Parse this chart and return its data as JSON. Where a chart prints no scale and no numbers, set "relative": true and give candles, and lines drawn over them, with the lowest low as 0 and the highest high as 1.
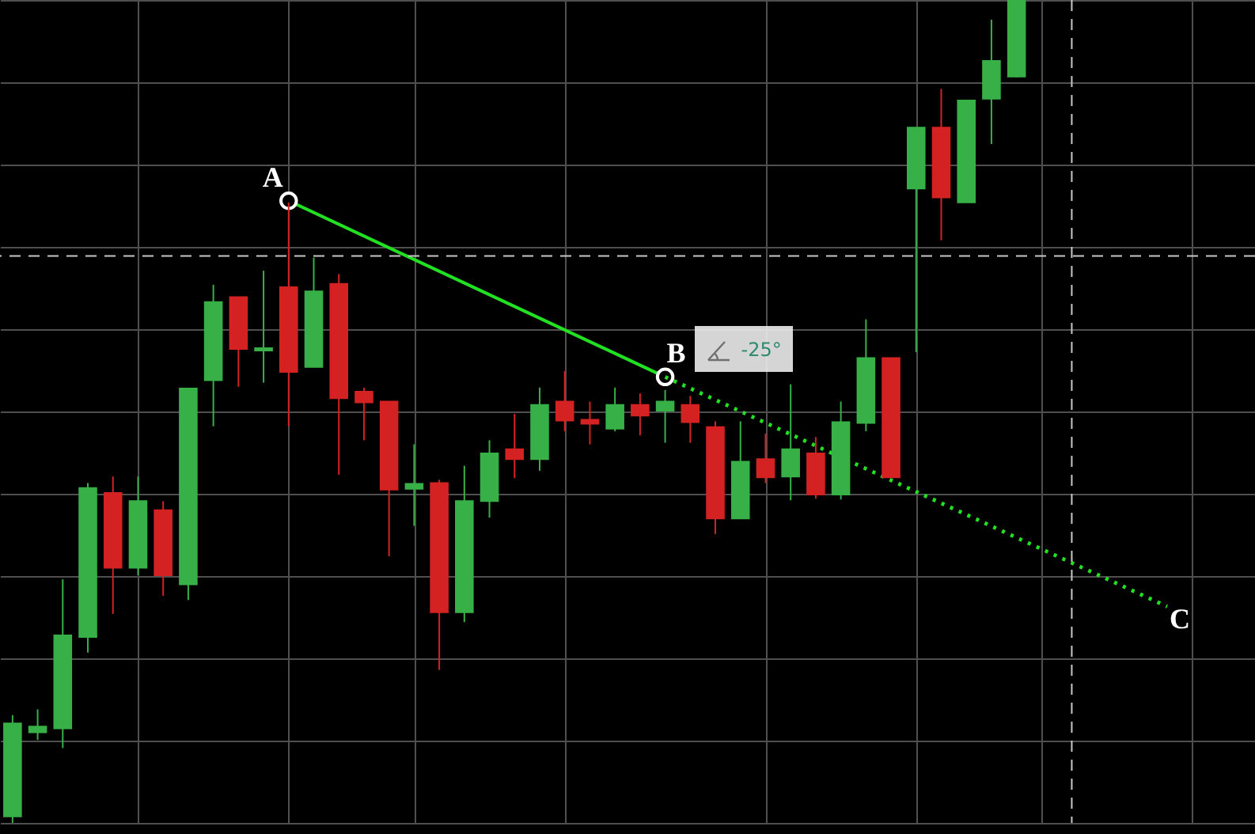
{
  "chart_data": {
    "type": "candlestick",
    "relative": true,
    "grid": true,
    "categories": [
      null,
      null,
      null,
      null,
      null,
      null,
      null,
      null,
      null,
      null,
      null,
      null,
      null,
      null,
      null,
      null,
      null,
      null,
      null,
      null,
      null,
      null,
      null,
      null,
      null,
      null,
      null,
      null,
      null,
      null,
      null,
      null,
      null,
      null,
      null,
      null,
      null,
      null,
      null,
      null,
      null,
      null,
      null,
      null,
      null,
      null,
      null,
      null,
      null,
      null
    ],
    "ohlc": [
      [
        0.008,
        0.131,
        0,
        0.121
      ],
      [
        0.11,
        0.138,
        0.101,
        0.117
      ],
      [
        0.115,
        0.296,
        0.091,
        0.228
      ],
      [
        0.226,
        0.413,
        0.207,
        0.407
      ],
      [
        0.401,
        0.421,
        0.254,
        0.31
      ],
      [
        0.31,
        0.421,
        0.301,
        0.391
      ],
      [
        0.38,
        0.391,
        0.276,
        0.301
      ],
      [
        0.29,
        0.528,
        0.271,
        0.528
      ],
      [
        0.538,
        0.654,
        0.482,
        0.633
      ],
      [
        0.639,
        0.639,
        0.53,
        0.576
      ],
      [
        0.574,
        0.671,
        0.535,
        0.577
      ],
      [
        0.651,
        0.754,
        0.482,
        0.548
      ],
      [
        0.554,
        0.687,
        0.554,
        0.646
      ],
      [
        0.655,
        0.667,
        0.423,
        0.516
      ],
      [
        0.524,
        0.529,
        0.465,
        0.511
      ],
      [
        0.512,
        0.512,
        0.324,
        0.405
      ],
      [
        0.406,
        0.46,
        0.361,
        0.412
      ],
      [
        0.413,
        0.417,
        0.186,
        0.256
      ],
      [
        0.256,
        0.434,
        0.244,
        0.391
      ],
      [
        0.391,
        0.465,
        0.371,
        0.449
      ],
      [
        0.454,
        0.497,
        0.419,
        0.442
      ],
      [
        0.442,
        0.529,
        0.428,
        0.508
      ],
      [
        0.512,
        0.549,
        0.476,
        0.489
      ],
      [
        0.49,
        0.512,
        0.46,
        0.485
      ],
      [
        0.479,
        0.529,
        0.476,
        0.508
      ],
      [
        0.508,
        0.522,
        0.471,
        0.495
      ],
      [
        0.501,
        0.526,
        0.462,
        0.512
      ],
      [
        0.508,
        0.519,
        0.462,
        0.487
      ],
      [
        0.481,
        0.488,
        0.351,
        0.37
      ],
      [
        0.37,
        0.488,
        0.37,
        0.439
      ],
      [
        0.442,
        0.473,
        0.413,
        0.42
      ],
      [
        0.421,
        0.533,
        0.392,
        0.454
      ],
      [
        0.449,
        0.469,
        0.394,
        0.399
      ],
      [
        0.399,
        0.512,
        0.393,
        0.487
      ],
      [
        0.486,
        0.612,
        0.476,
        0.565
      ],
      [
        0.565,
        0.565,
        0.42,
        0.42
      ],
      [
        0.771,
        0.845,
        0.572,
        0.845
      ],
      [
        0.845,
        0.892,
        0.708,
        0.76
      ],
      [
        0.754,
        0.878,
        0.754,
        0.878
      ],
      [
        0.88,
        0.976,
        0.825,
        0.926
      ],
      [
        0.907,
        1,
        0.906,
        1
      ],
      null,
      null,
      null,
      null,
      null,
      null,
      null,
      null,
      null
    ],
    "colors": [
      "#38b048",
      "#38b048",
      "#38b048",
      "#38b048",
      "#d42222",
      "#38b048",
      "#d42222",
      "#38b048",
      "#38b048",
      "#d42222",
      "#38b048",
      "#d42222",
      "#38b048",
      "#d42222",
      "#d42222",
      "#d42222",
      "#38b048",
      "#d42222",
      "#38b048",
      "#38b048",
      "#d42222",
      "#38b048",
      "#d42222",
      "#d42222",
      "#38b048",
      "#d42222",
      "#38b048",
      "#d42222",
      "#d42222",
      "#38b048",
      "#d42222",
      "#38b048",
      "#d42222",
      "#38b048",
      "#38b048",
      "#d42222",
      "#38b048",
      "#d42222",
      "#38b048",
      "#38b048",
      "#38b048",
      null,
      null,
      null,
      null,
      null,
      null,
      null,
      null,
      null
    ],
    "series": [
      {
        "type": "line",
        "color": "#22e022",
        "line_style": "solid",
        "marker": "circle",
        "values": [
          null,
          null,
          null,
          null,
          null,
          null,
          null,
          null,
          null,
          null,
          null,
          0.756,
          null,
          null,
          null,
          null,
          null,
          null,
          null,
          null,
          null,
          null,
          null,
          null,
          null,
          null,
          0.542,
          null,
          null,
          null,
          null,
          null,
          null,
          null,
          null,
          null,
          null,
          null,
          null,
          null,
          null,
          null,
          null,
          null,
          null,
          null,
          null,
          null,
          null,
          null
        ]
      },
      {
        "type": "line",
        "color": "#22e022",
        "line_style": "dotted",
        "marker": "none",
        "values": [
          null,
          null,
          null,
          null,
          null,
          null,
          null,
          null,
          null,
          null,
          null,
          null,
          null,
          null,
          null,
          null,
          null,
          null,
          null,
          null,
          null,
          null,
          null,
          null,
          null,
          null,
          0.542,
          null,
          null,
          null,
          null,
          null,
          null,
          null,
          null,
          null,
          null,
          null,
          null,
          null,
          null,
          null,
          null,
          null,
          null,
          null,
          0.263,
          null,
          null,
          null
        ]
      }
    ],
    "ref_lines": [
      {
        "axis": "y",
        "value": 0.689,
        "color": "#c8c8c8",
        "line_style": "dashed"
      }
    ],
    "annotations": [
      "A",
      "B",
      "C",
      "-25°"
    ]
  }
}
